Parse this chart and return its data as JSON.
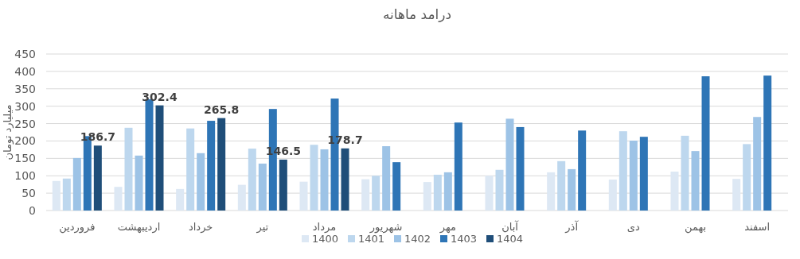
{
  "chart_data": {
    "type": "bar",
    "title": "درامد ماهانه",
    "ylabel": "میلیارد تومان",
    "categories": [
      "فروردین",
      "اردیبهشت",
      "خرداد",
      "تیر",
      "مرداد",
      "شهریور",
      "مهر",
      "آبان",
      "آذر",
      "دی",
      "بهمن",
      "اسفند"
    ],
    "series": [
      {
        "name": "1400",
        "color": "#dde8f4",
        "values": [
          85,
          68,
          62,
          74,
          83,
          90,
          82,
          100,
          110,
          89,
          112,
          91
        ]
      },
      {
        "name": "1401",
        "color": "#bdd7ee",
        "values": [
          92,
          238,
          236,
          178,
          189,
          100,
          103,
          117,
          142,
          228,
          215,
          191
        ]
      },
      {
        "name": "1402",
        "color": "#9dc3e6",
        "values": [
          151,
          158,
          165,
          135,
          176,
          185,
          110,
          264,
          119,
          201,
          171,
          269
        ]
      },
      {
        "name": "1403",
        "color": "#2e75b6",
        "values": [
          214,
          320,
          258,
          292,
          322,
          139,
          253,
          240,
          230,
          212,
          386,
          388
        ]
      },
      {
        "name": "1404",
        "color": "#1f4e79",
        "values": [
          186.7,
          302.4,
          265.8,
          146.5,
          178.7,
          null,
          null,
          null,
          null,
          null,
          null,
          null
        ],
        "value_labels": [
          "186.7",
          "302.4",
          "265.8",
          "146.5",
          "178.7",
          null,
          null,
          null,
          null,
          null,
          null,
          null
        ]
      }
    ],
    "ylim": [
      0,
      450
    ],
    "yticks": [
      0,
      50,
      100,
      150,
      200,
      250,
      300,
      350,
      400,
      450
    ],
    "grid": "y",
    "legend": "bottom"
  }
}
